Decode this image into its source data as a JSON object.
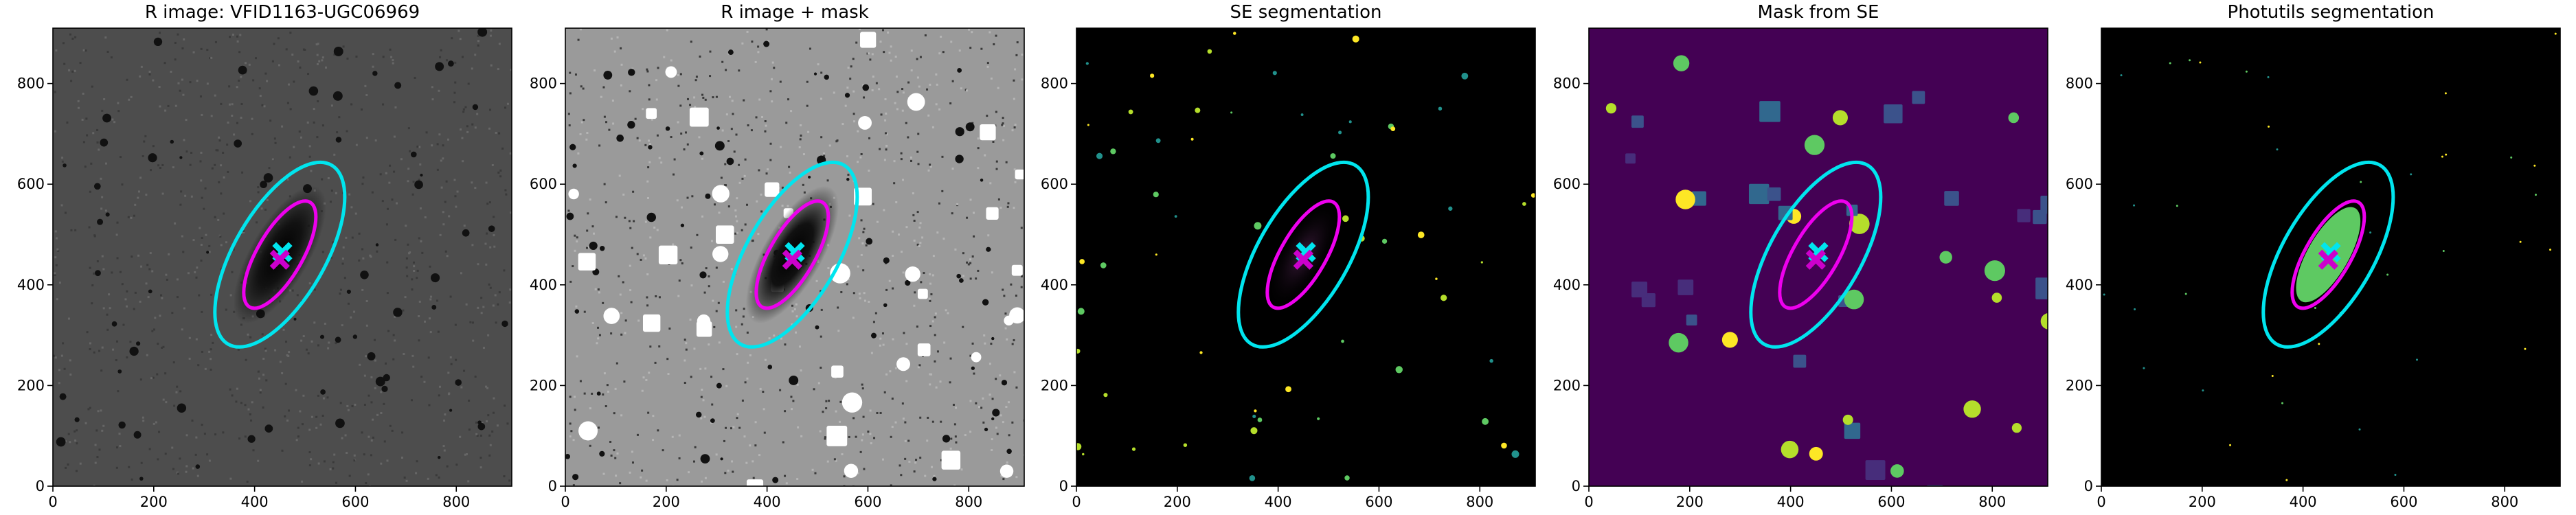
{
  "chart_data": [
    {
      "type": "image",
      "title": "R image: VFID1163-UGC06969",
      "xlim": [
        0,
        910
      ],
      "ylim": [
        0,
        910
      ],
      "xticks": [
        0,
        200,
        400,
        600,
        800
      ],
      "yticks": [
        0,
        200,
        400,
        600,
        800
      ],
      "ellipses": [
        {
          "cx": 450,
          "cy": 460,
          "a": 205,
          "b": 90,
          "angle": 60,
          "color": "#00e5ee"
        },
        {
          "cx": 450,
          "cy": 460,
          "a": 120,
          "b": 45,
          "angle": 60,
          "color": "#ee00ee"
        }
      ],
      "markers": [
        {
          "x": 455,
          "y": 465,
          "color": "#00e5ee"
        },
        {
          "x": 450,
          "y": 450,
          "color": "#cc00cc"
        }
      ]
    },
    {
      "type": "image",
      "title": "R image + mask",
      "xlim": [
        0,
        910
      ],
      "ylim": [
        0,
        910
      ],
      "xticks": [
        0,
        200,
        400,
        600,
        800
      ],
      "yticks": [
        0,
        200,
        400,
        600,
        800
      ],
      "ellipses": [
        {
          "cx": 450,
          "cy": 460,
          "a": 205,
          "b": 90,
          "angle": 60,
          "color": "#00e5ee"
        },
        {
          "cx": 450,
          "cy": 460,
          "a": 120,
          "b": 45,
          "angle": 60,
          "color": "#ee00ee"
        }
      ],
      "markers": [
        {
          "x": 455,
          "y": 465,
          "color": "#00e5ee"
        },
        {
          "x": 450,
          "y": 450,
          "color": "#cc00cc"
        }
      ]
    },
    {
      "type": "image",
      "title": "SE segmentation",
      "xlim": [
        0,
        910
      ],
      "ylim": [
        0,
        910
      ],
      "xticks": [
        0,
        200,
        400,
        600,
        800
      ],
      "yticks": [
        0,
        200,
        400,
        600,
        800
      ],
      "ellipses": [
        {
          "cx": 450,
          "cy": 460,
          "a": 205,
          "b": 90,
          "angle": 60,
          "color": "#00e5ee"
        },
        {
          "cx": 450,
          "cy": 460,
          "a": 120,
          "b": 45,
          "angle": 60,
          "color": "#ee00ee"
        }
      ],
      "markers": [
        {
          "x": 455,
          "y": 465,
          "color": "#00e5ee"
        },
        {
          "x": 450,
          "y": 450,
          "color": "#cc00cc"
        }
      ]
    },
    {
      "type": "image",
      "title": "Mask from SE",
      "xlim": [
        0,
        910
      ],
      "ylim": [
        0,
        910
      ],
      "xticks": [
        0,
        200,
        400,
        600,
        800
      ],
      "yticks": [
        0,
        200,
        400,
        600,
        800
      ],
      "ellipses": [
        {
          "cx": 450,
          "cy": 460,
          "a": 205,
          "b": 90,
          "angle": 60,
          "color": "#00e5ee"
        },
        {
          "cx": 450,
          "cy": 460,
          "a": 120,
          "b": 45,
          "angle": 60,
          "color": "#ee00ee"
        }
      ],
      "markers": [
        {
          "x": 455,
          "y": 465,
          "color": "#00e5ee"
        },
        {
          "x": 450,
          "y": 450,
          "color": "#cc00cc"
        }
      ]
    },
    {
      "type": "image",
      "title": "Photutils segmentation",
      "xlim": [
        0,
        910
      ],
      "ylim": [
        0,
        910
      ],
      "xticks": [
        0,
        200,
        400,
        600,
        800
      ],
      "yticks": [
        0,
        200,
        400,
        600,
        800
      ],
      "ellipses": [
        {
          "cx": 450,
          "cy": 460,
          "a": 205,
          "b": 90,
          "angle": 60,
          "color": "#00e5ee"
        },
        {
          "cx": 450,
          "cy": 460,
          "a": 120,
          "b": 45,
          "angle": 60,
          "color": "#ee00ee"
        }
      ],
      "markers": [
        {
          "x": 455,
          "y": 465,
          "color": "#00e5ee"
        },
        {
          "x": 450,
          "y": 450,
          "color": "#cc00cc"
        }
      ]
    }
  ]
}
